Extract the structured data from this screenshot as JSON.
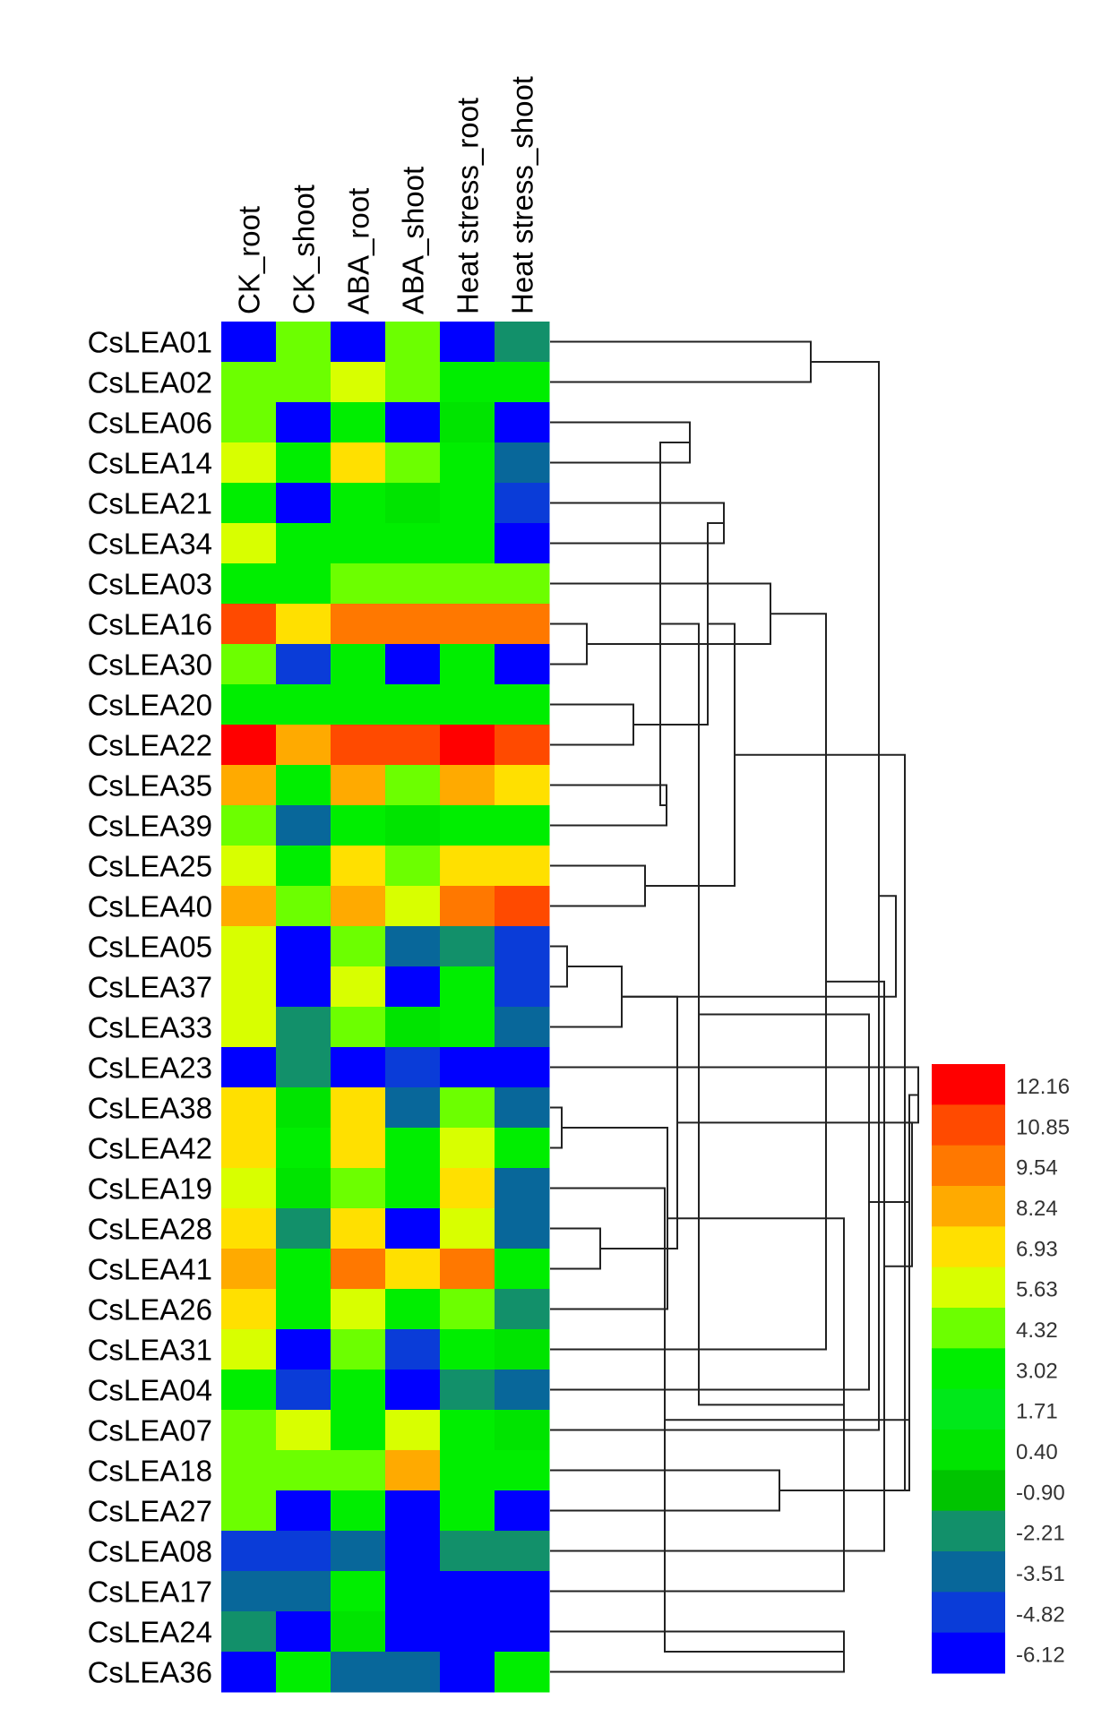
{
  "chart_data": {
    "type": "heatmap",
    "title": "",
    "columns": [
      "CK_root",
      "CK_shoot",
      "ABA_root",
      "ABA_shoot",
      "Heat stress_root",
      "Heat stress_shoot"
    ],
    "rows": [
      "CsLEA01",
      "CsLEA02",
      "CsLEA06",
      "CsLEA14",
      "CsLEA21",
      "CsLEA34",
      "CsLEA03",
      "CsLEA16",
      "CsLEA30",
      "CsLEA20",
      "CsLEA22",
      "CsLEA35",
      "CsLEA39",
      "CsLEA25",
      "CsLEA40",
      "CsLEA05",
      "CsLEA37",
      "CsLEA33",
      "CsLEA23",
      "CsLEA38",
      "CsLEA42",
      "CsLEA19",
      "CsLEA28",
      "CsLEA41",
      "CsLEA26",
      "CsLEA31",
      "CsLEA04",
      "CsLEA07",
      "CsLEA18",
      "CsLEA27",
      "CsLEA08",
      "CsLEA17",
      "CsLEA24",
      "CsLEA36"
    ],
    "values": [
      [
        -6.12,
        4.32,
        -6.12,
        4.32,
        -6.12,
        -2.21
      ],
      [
        4.32,
        4.32,
        5.63,
        4.32,
        3.02,
        3.02
      ],
      [
        4.32,
        -6.12,
        3.02,
        -6.12,
        0.4,
        -6.12
      ],
      [
        5.63,
        3.02,
        6.93,
        4.32,
        3.02,
        -3.51
      ],
      [
        3.02,
        -6.12,
        3.02,
        0.4,
        3.02,
        -4.82
      ],
      [
        5.63,
        3.02,
        3.02,
        3.02,
        3.02,
        -6.12
      ],
      [
        3.02,
        3.02,
        4.32,
        4.32,
        4.32,
        4.32
      ],
      [
        10.85,
        6.93,
        9.54,
        9.54,
        9.54,
        9.54
      ],
      [
        4.32,
        -4.82,
        3.02,
        -6.12,
        3.02,
        -6.12
      ],
      [
        3.02,
        3.02,
        3.02,
        3.02,
        3.02,
        3.02
      ],
      [
        12.16,
        8.24,
        10.85,
        10.85,
        12.16,
        10.85
      ],
      [
        8.24,
        3.02,
        8.24,
        4.32,
        8.24,
        6.93
      ],
      [
        4.32,
        -3.51,
        3.02,
        0.4,
        3.02,
        3.02
      ],
      [
        5.63,
        3.02,
        6.93,
        4.32,
        6.93,
        6.93
      ],
      [
        8.24,
        4.32,
        8.24,
        5.63,
        9.54,
        10.85
      ],
      [
        5.63,
        -6.12,
        4.32,
        -3.51,
        -2.21,
        -4.82
      ],
      [
        5.63,
        -6.12,
        5.63,
        -6.12,
        3.02,
        -4.82
      ],
      [
        5.63,
        -2.21,
        4.32,
        0.4,
        3.02,
        -3.51
      ],
      [
        -6.12,
        -2.21,
        -6.12,
        -4.82,
        -6.12,
        -6.12
      ],
      [
        6.93,
        0.4,
        6.93,
        -3.51,
        4.32,
        -3.51
      ],
      [
        6.93,
        3.02,
        6.93,
        3.02,
        5.63,
        3.02
      ],
      [
        5.63,
        0.4,
        4.32,
        3.02,
        6.93,
        -3.51
      ],
      [
        6.93,
        -2.21,
        6.93,
        -6.12,
        5.63,
        -3.51
      ],
      [
        8.24,
        3.02,
        9.54,
        6.93,
        9.54,
        3.02
      ],
      [
        6.93,
        3.02,
        5.63,
        3.02,
        4.32,
        -2.21
      ],
      [
        5.63,
        -6.12,
        4.32,
        -4.82,
        3.02,
        0.4
      ],
      [
        3.02,
        -4.82,
        3.02,
        -6.12,
        -2.21,
        -3.51
      ],
      [
        4.32,
        5.63,
        3.02,
        5.63,
        3.02,
        0.4
      ],
      [
        4.32,
        4.32,
        4.32,
        8.24,
        3.02,
        3.02
      ],
      [
        4.32,
        -6.12,
        3.02,
        -6.12,
        3.02,
        -6.12
      ],
      [
        -4.82,
        -4.82,
        -3.51,
        -6.12,
        -2.21,
        -2.21
      ],
      [
        -3.51,
        -3.51,
        3.02,
        -6.12,
        -6.12,
        -6.12
      ],
      [
        -2.21,
        -6.12,
        0.4,
        -6.12,
        -6.12,
        -6.12
      ],
      [
        -6.12,
        3.02,
        -3.51,
        -3.51,
        -6.12,
        3.02
      ]
    ],
    "color_scale": {
      "ticks": [
        "12.16",
        "10.85",
        "9.54",
        "8.24",
        "6.93",
        "5.63",
        "4.32",
        "3.02",
        "1.71",
        "0.40",
        "-0.90",
        "-2.21",
        "-3.51",
        "-4.82",
        "-6.12"
      ],
      "colors": [
        "#ff0000",
        "#ff4a00",
        "#ff7800",
        "#ffaa00",
        "#ffe000",
        "#d8ff00",
        "#6cff00",
        "#00ee00",
        "#00e81a",
        "#00e400",
        "#00c400",
        "#12906a",
        "#08679a",
        "#0a3cd8",
        "#0000ff"
      ],
      "min": -6.12,
      "max": 12.16
    },
    "dendrogram": "row clustering, shown on the right",
    "grid": false,
    "legend_placement": "bottom-right"
  }
}
